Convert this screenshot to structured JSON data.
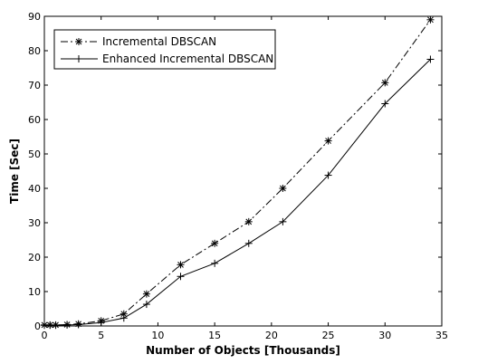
{
  "chart_data": {
    "type": "line",
    "title": "",
    "xlabel": "Number of Objects [Thousands]",
    "ylabel": "Time [Sec]",
    "xlim": [
      0,
      35
    ],
    "ylim": [
      0,
      90
    ],
    "xticks": [
      0,
      5,
      10,
      15,
      20,
      25,
      30,
      35
    ],
    "yticks": [
      0,
      10,
      20,
      30,
      40,
      50,
      60,
      70,
      80,
      90
    ],
    "grid": false,
    "legend_position": "top-left",
    "series": [
      {
        "name": "Incremental DBSCAN",
        "line_style": "dash-dot",
        "marker": "asterisk",
        "color": "#000000",
        "x": [
          0,
          0.5,
          1,
          2,
          3,
          5,
          7,
          9,
          12,
          15,
          18,
          21,
          25,
          30,
          34
        ],
        "y": [
          0.3,
          0.3,
          0.3,
          0.4,
          0.6,
          1.5,
          3.5,
          9.3,
          17.8,
          24,
          30.3,
          40,
          53.8,
          70.7,
          89
        ]
      },
      {
        "name": "Enhanced Incremental DBSCAN",
        "line_style": "solid",
        "marker": "plus",
        "color": "#000000",
        "x": [
          0,
          0.5,
          1,
          2,
          3,
          5,
          7,
          9,
          12,
          15,
          18,
          21,
          25,
          30,
          34
        ],
        "y": [
          0.2,
          0.2,
          0.2,
          0.3,
          0.4,
          1.0,
          2.3,
          6.3,
          14.4,
          18.2,
          24,
          30.3,
          43.8,
          64.6,
          77.5
        ]
      }
    ]
  }
}
